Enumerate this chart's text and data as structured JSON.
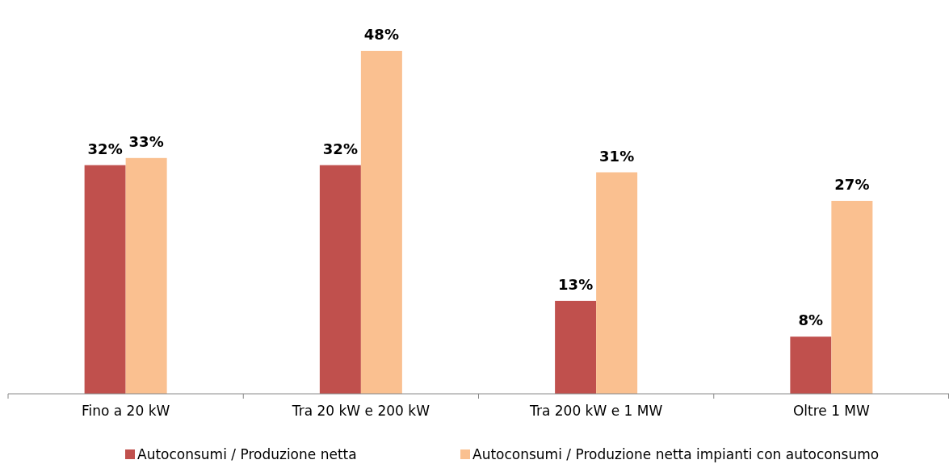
{
  "chart_data": {
    "type": "bar",
    "categories": [
      "Fino a 20 kW",
      "Tra 20 kW e 200 kW",
      "Tra 200 kW e 1 MW",
      "Oltre 1 MW"
    ],
    "series": [
      {
        "name": "Autoconsumi / Produzione netta",
        "color": "#c0504d",
        "values": [
          32,
          32,
          13,
          8
        ],
        "value_labels": [
          "32%",
          "32%",
          "13%",
          "8%"
        ]
      },
      {
        "name": "Autoconsumi / Produzione netta impianti con autoconsumo",
        "color": "#fac090",
        "values": [
          33,
          48,
          31,
          27
        ],
        "value_labels": [
          "33%",
          "48%",
          "31%",
          "27%"
        ]
      }
    ],
    "legend": "bottom",
    "grid": false,
    "tick_labels": "x"
  }
}
